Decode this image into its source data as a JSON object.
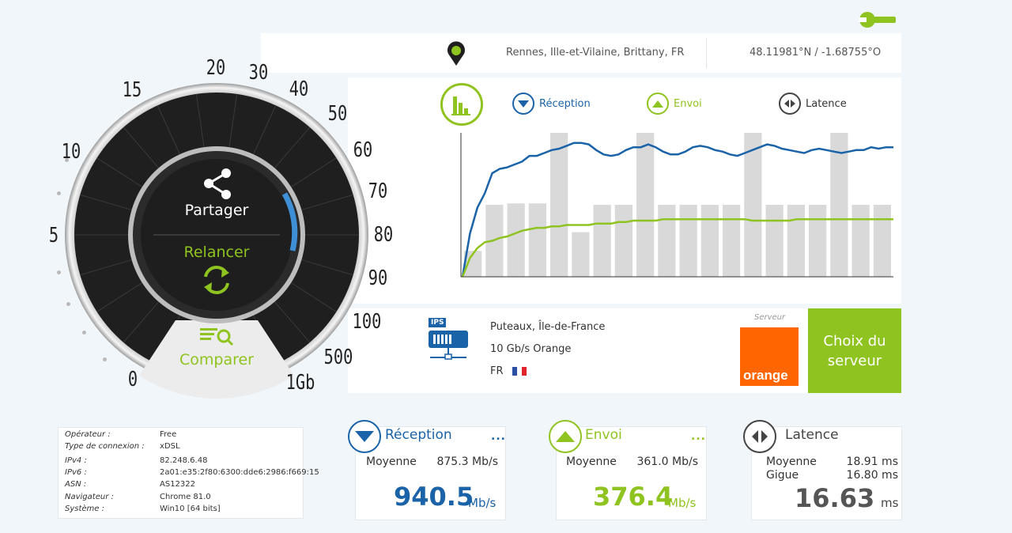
{
  "header": {
    "location": "Rennes, Ille-et-Vilaine, Brittany, FR",
    "coordinates": "48.11981°N / -1.68755°O",
    "settings_icon": "wrench-icon",
    "pin_icon": "map-pin-icon"
  },
  "gauge": {
    "share_label": "Partager",
    "retry_label": "Relancer",
    "compare_label": "Comparer",
    "scale_labels": [
      "0",
      "5",
      "10",
      "15",
      "20",
      "30",
      "40",
      "50",
      "60",
      "70",
      "80",
      "90",
      "100",
      "500",
      "1Gb"
    ]
  },
  "legend": {
    "reception": "Réception",
    "upload": "Envoi",
    "latency": "Latence"
  },
  "chart_data": {
    "type": "line",
    "bars": [
      0.18,
      0.5,
      0.51,
      0.51,
      1.0,
      0.31,
      0.5,
      0.5,
      1.0,
      0.5,
      0.5,
      0.5,
      0.5,
      1.0,
      0.5,
      0.5,
      0.5,
      1.0,
      0.5,
      0.5
    ],
    "series": [
      {
        "values": [
          0.0,
          0.3,
          0.48,
          0.58,
          0.72,
          0.75,
          0.76,
          0.78,
          0.8,
          0.84,
          0.84,
          0.86,
          0.88,
          0.89,
          0.91,
          0.93,
          0.93,
          0.92,
          0.88,
          0.85,
          0.84,
          0.85,
          0.88,
          0.9,
          0.9,
          0.92,
          0.9,
          0.87,
          0.85,
          0.85,
          0.87,
          0.9,
          0.91,
          0.9,
          0.88,
          0.87,
          0.85,
          0.84,
          0.86,
          0.88,
          0.9,
          0.92,
          0.91,
          0.89,
          0.88,
          0.87,
          0.86,
          0.88,
          0.89,
          0.88,
          0.87,
          0.86,
          0.87,
          0.88,
          0.88,
          0.9,
          0.89,
          0.9,
          0.9
        ],
        "color": "#1a63a8"
      },
      {
        "values": [
          0.0,
          0.13,
          0.2,
          0.24,
          0.25,
          0.27,
          0.28,
          0.3,
          0.32,
          0.33,
          0.34,
          0.34,
          0.35,
          0.35,
          0.36,
          0.36,
          0.36,
          0.36,
          0.37,
          0.37,
          0.37,
          0.38,
          0.38,
          0.39,
          0.39,
          0.39,
          0.39,
          0.4,
          0.4,
          0.4,
          0.4,
          0.4,
          0.4,
          0.4,
          0.4,
          0.4,
          0.4,
          0.4,
          0.4,
          0.39,
          0.39,
          0.39,
          0.39,
          0.39,
          0.39,
          0.4,
          0.4,
          0.4,
          0.4,
          0.4,
          0.4,
          0.4,
          0.4,
          0.4,
          0.4,
          0.4,
          0.4,
          0.4,
          0.4
        ],
        "color": "#8fc31f"
      }
    ]
  },
  "server": {
    "city": "Puteaux, Île-de-France",
    "operator": "10 Gb/s Orange",
    "country": "FR",
    "badge": "IPS",
    "caption": "Serveur",
    "brand": "orange",
    "choose_label": "Choix du serveur",
    "colors": {
      "orange": "#ff6600",
      "green": "#8fc31f"
    }
  },
  "info": {
    "rows": [
      {
        "key": "Opérateur :",
        "value": "Free"
      },
      {
        "key": "Type de connexion :",
        "value": "xDSL"
      },
      {
        "key": "IPv4 :",
        "value": "82.248.6.48"
      },
      {
        "key": "IPv6 :",
        "value": "2a01:e35:2f80:6300:dde6:2986:f669:15"
      },
      {
        "key": "ASN :",
        "value": "AS12322"
      },
      {
        "key": "Navigateur :",
        "value": "Chrome 81.0"
      },
      {
        "key": "Système :",
        "value": "Win10 [64 bits]"
      }
    ]
  },
  "cards": {
    "reception": {
      "title": "Réception",
      "avg_label": "Moyenne",
      "avg_value": "875.3 Mb/s",
      "value": "940.5",
      "unit": "Mb/s",
      "more": "..."
    },
    "upload": {
      "title": "Envoi",
      "avg_label": "Moyenne",
      "avg_value": "361.0 Mb/s",
      "value": "376.4",
      "unit": "Mb/s",
      "more": "..."
    },
    "latency": {
      "title": "Latence",
      "avg_label": "Moyenne",
      "avg_value": "18.91 ms",
      "jitter_label": "Gigue",
      "jitter_value": "16.80 ms",
      "value": "16.63",
      "unit": "ms"
    }
  }
}
